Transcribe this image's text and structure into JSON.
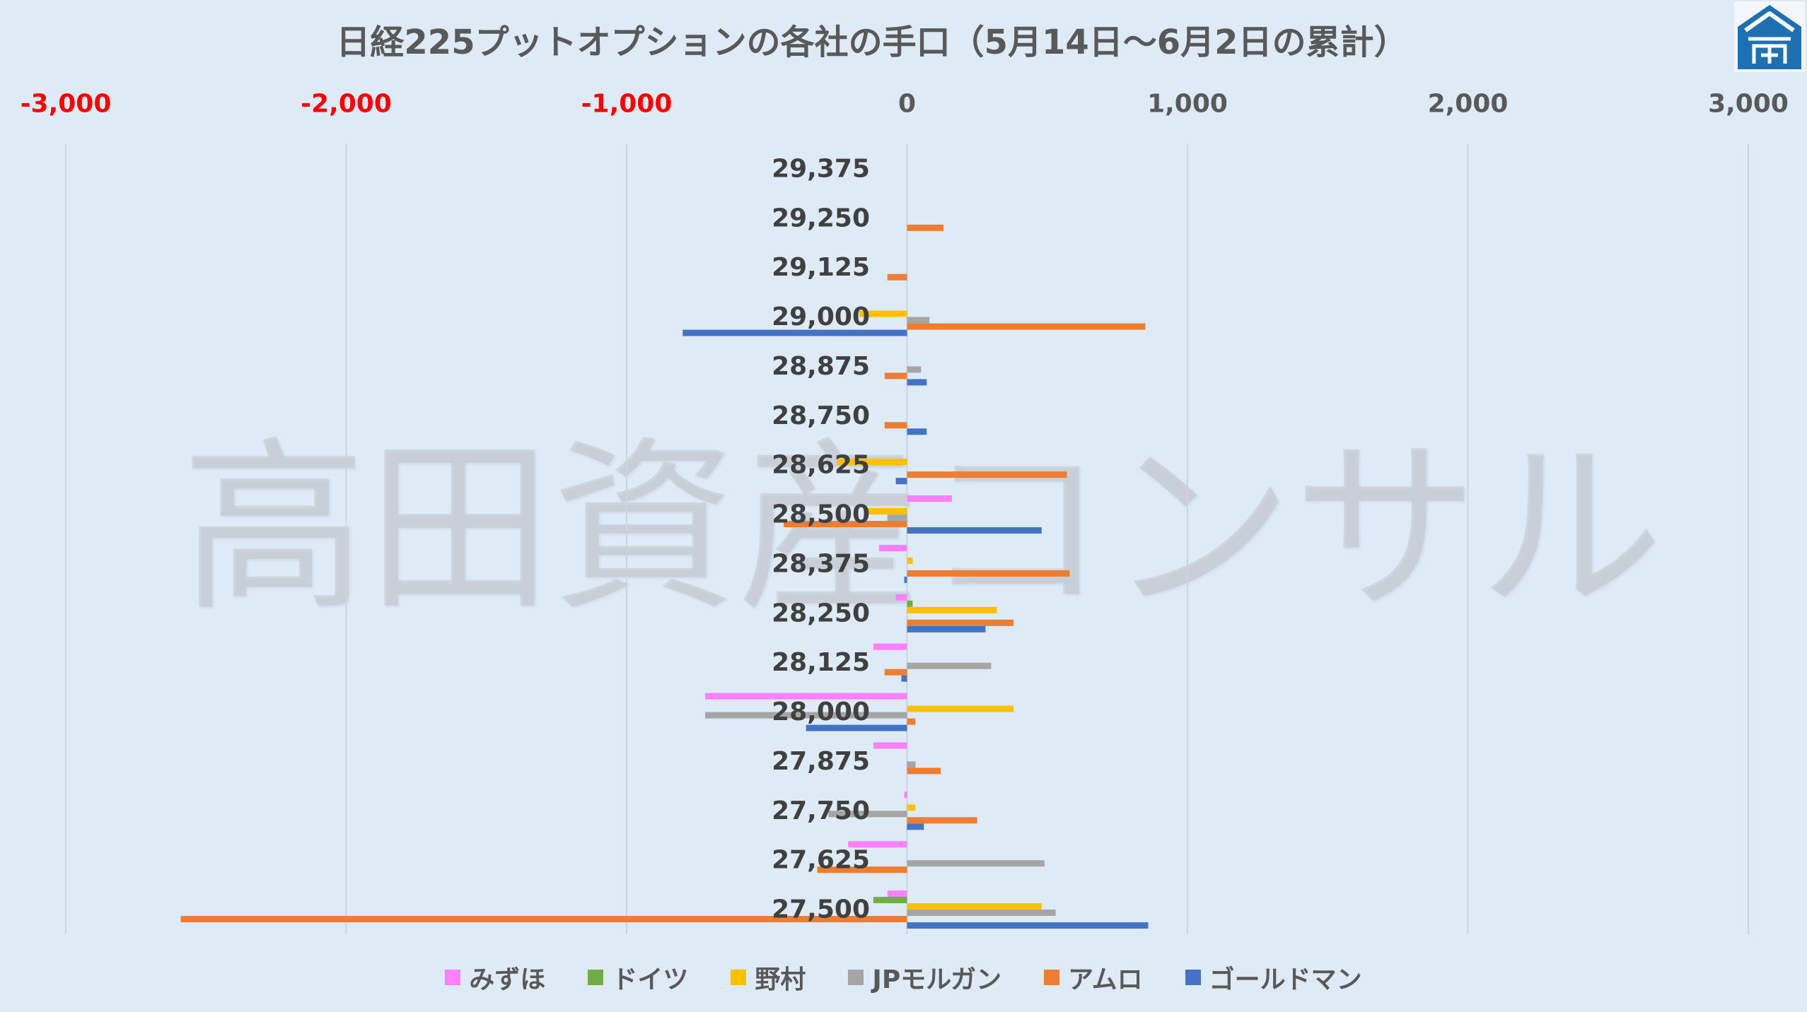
{
  "watermark": "高田資産コンサル",
  "logo": {
    "icon": "house-logo-icon"
  },
  "colors": {
    "background": "#DEEAF6",
    "grid": "#C9D4DF",
    "tick": "#595959",
    "negative_tick": "#FF0000",
    "category_label": "#404040",
    "logo": "#1F6FB3"
  },
  "chart_data": {
    "type": "bar",
    "orientation": "horizontal",
    "title": "日経225プットオプションの各社の手口（5月14日～6月2日の累計）",
    "categories": [
      "29,375",
      "29,250",
      "29,125",
      "29,000",
      "28,875",
      "28,750",
      "28,625",
      "28,500",
      "28,375",
      "28,250",
      "28,125",
      "28,000",
      "27,875",
      "27,750",
      "27,625",
      "27,500"
    ],
    "xlim": [
      -3000,
      3000
    ],
    "x_ticks": [
      -3000,
      -2000,
      -1000,
      0,
      1000,
      2000,
      3000
    ],
    "x_tick_labels": [
      "-3,000",
      "-2,000",
      "-1,000",
      "0",
      "1,000",
      "2,000",
      "3,000"
    ],
    "x_axis_position": "top",
    "grid": "vertical",
    "legend": "bottom",
    "series": [
      {
        "name": "みずほ",
        "color": "#FF80FF",
        "values": [
          0,
          0,
          0,
          0,
          0,
          0,
          0,
          160,
          -100,
          -40,
          -120,
          -720,
          -120,
          -10,
          -210,
          -70
        ]
      },
      {
        "name": "ドイツ",
        "color": "#70AD47",
        "values": [
          0,
          0,
          0,
          0,
          0,
          0,
          0,
          0,
          0,
          20,
          0,
          0,
          0,
          0,
          0,
          -120
        ]
      },
      {
        "name": "野村",
        "color": "#FFC000",
        "values": [
          0,
          0,
          0,
          -170,
          0,
          0,
          -250,
          -150,
          20,
          320,
          0,
          380,
          0,
          30,
          0,
          480
        ]
      },
      {
        "name": "JPモルガン",
        "color": "#A5A5A5",
        "values": [
          0,
          0,
          0,
          80,
          50,
          0,
          0,
          -70,
          0,
          0,
          300,
          -720,
          30,
          -280,
          490,
          530
        ]
      },
      {
        "name": "アムロ",
        "color": "#ED7D31",
        "values": [
          0,
          130,
          -70,
          850,
          -80,
          -80,
          570,
          -440,
          580,
          380,
          -80,
          30,
          120,
          250,
          -320,
          -2590
        ]
      },
      {
        "name": "ゴールドマン",
        "color": "#4472C4",
        "values": [
          0,
          0,
          0,
          -800,
          70,
          70,
          -40,
          480,
          -10,
          280,
          -20,
          -360,
          0,
          60,
          0,
          860
        ]
      }
    ]
  }
}
